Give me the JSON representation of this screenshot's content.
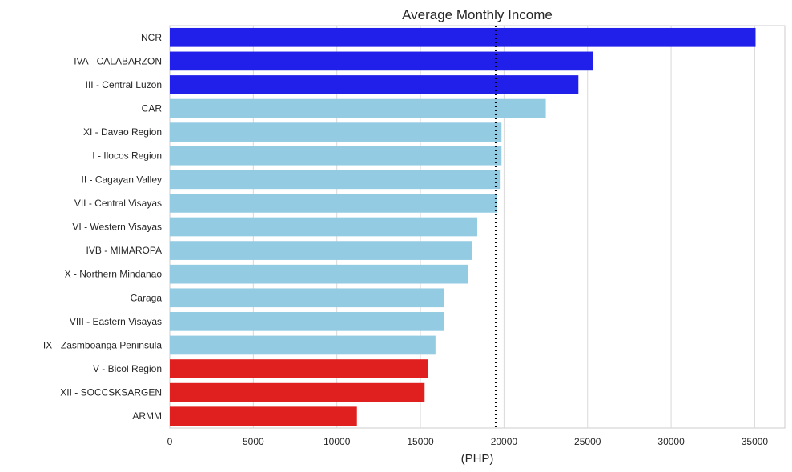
{
  "chart_data": {
    "type": "bar",
    "orientation": "horizontal",
    "title": "Average Monthly Income",
    "xlabel": "(PHP)",
    "ylabel": "",
    "xlim": [
      0,
      36800
    ],
    "xticks": [
      0,
      5000,
      10000,
      15000,
      20000,
      25000,
      30000,
      35000
    ],
    "xtick_labels": [
      "0",
      "5000",
      "10000",
      "15000",
      "20000",
      "25000",
      "30000",
      "35000"
    ],
    "grid": true,
    "reference_line": {
      "value": 19500,
      "style": "dotted"
    },
    "categories": [
      "NCR",
      "IVA - CALABARZON",
      "III - Central Luzon",
      "CAR",
      "XI - Davao Region",
      "I - Ilocos Region",
      "II - Cagayan Valley",
      "VII - Central Visayas",
      "VI - Western Visayas",
      "IVB - MIMAROPA",
      "X - Northern Mindanao",
      "Caraga",
      "VIII - Eastern Visayas",
      "IX - Zasmboanga Peninsula",
      "V - Bicol Region",
      "XII - SOCCSKSARGEN",
      "ARMM"
    ],
    "values": [
      35050,
      25300,
      24450,
      22500,
      19850,
      19850,
      19750,
      19600,
      18400,
      18100,
      17850,
      16400,
      16400,
      15900,
      15450,
      15250,
      11200
    ],
    "colors": [
      "#2020ea",
      "#2020ea",
      "#2020ea",
      "#92cbe2",
      "#92cbe2",
      "#92cbe2",
      "#92cbe2",
      "#92cbe2",
      "#92cbe2",
      "#92cbe2",
      "#92cbe2",
      "#92cbe2",
      "#92cbe2",
      "#92cbe2",
      "#e01f1f",
      "#e01f1f",
      "#e01f1f"
    ]
  }
}
